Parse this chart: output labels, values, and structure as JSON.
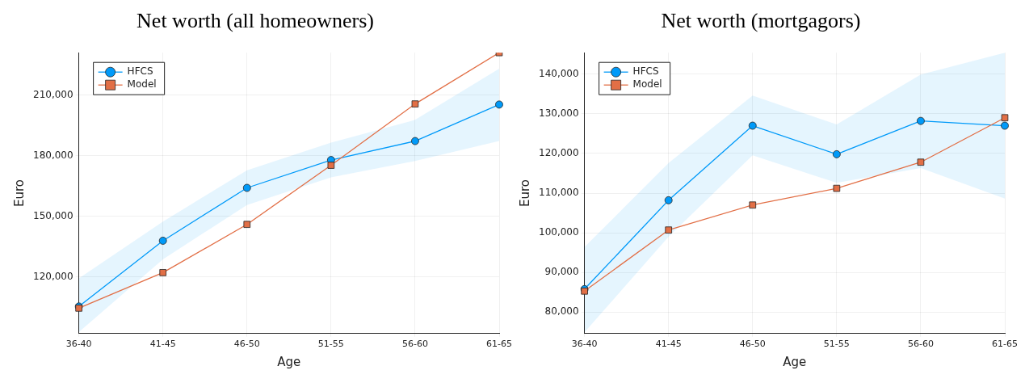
{
  "chart_data": [
    {
      "type": "line",
      "title": "Net worth (all homeowners)",
      "xlabel": "Age",
      "ylabel": "Euro",
      "categories": [
        "36-40",
        "41-45",
        "46-50",
        "51-55",
        "56-60",
        "61-65"
      ],
      "series": [
        {
          "name": "HFCS",
          "color": "#009af9",
          "marker": "circle",
          "values": [
            105200,
            137800,
            164000,
            177800,
            187200,
            205300
          ],
          "lower": [
            92500,
            128600,
            155500,
            169200,
            177300,
            187200
          ],
          "upper": [
            119200,
            147300,
            172700,
            186400,
            197700,
            223100
          ]
        },
        {
          "name": "Model",
          "color": "#e26f46",
          "marker": "square",
          "values": [
            104400,
            122000,
            145900,
            175200,
            205600,
            231000
          ]
        }
      ],
      "ylim": [
        91800,
        231000
      ],
      "yticks": [
        {
          "value": 120000,
          "label": "120,000"
        },
        {
          "value": 150000,
          "label": "150,000"
        },
        {
          "value": 180000,
          "label": "180,000"
        },
        {
          "value": 210000,
          "label": "210,000"
        }
      ],
      "grid": true,
      "legend": "top left"
    },
    {
      "type": "line",
      "title": "Net worth (mortgagors)",
      "xlabel": "Age",
      "ylabel": "Euro",
      "categories": [
        "36-40",
        "41-45",
        "46-50",
        "51-55",
        "56-60",
        "61-65"
      ],
      "series": [
        {
          "name": "HFCS",
          "color": "#009af9",
          "marker": "circle",
          "values": [
            85800,
            108200,
            127000,
            119800,
            128200,
            127000
          ],
          "lower": [
            74900,
            99000,
            119500,
            112600,
            116300,
            108600
          ],
          "upper": [
            96400,
            117600,
            134600,
            127300,
            139900,
            145400
          ]
        },
        {
          "name": "Model",
          "color": "#e26f46",
          "marker": "square",
          "values": [
            85300,
            100700,
            107000,
            111200,
            117800,
            129000
          ]
        }
      ],
      "ylim": [
        74600,
        145400
      ],
      "yticks": [
        {
          "value": 80000,
          "label": "80,000"
        },
        {
          "value": 90000,
          "label": "90,000"
        },
        {
          "value": 100000,
          "label": "100,000"
        },
        {
          "value": 110000,
          "label": "110,000"
        },
        {
          "value": 120000,
          "label": "120,000"
        },
        {
          "value": 130000,
          "label": "130,000"
        },
        {
          "value": 140000,
          "label": "140,000"
        }
      ],
      "grid": true,
      "legend": "top left"
    }
  ]
}
